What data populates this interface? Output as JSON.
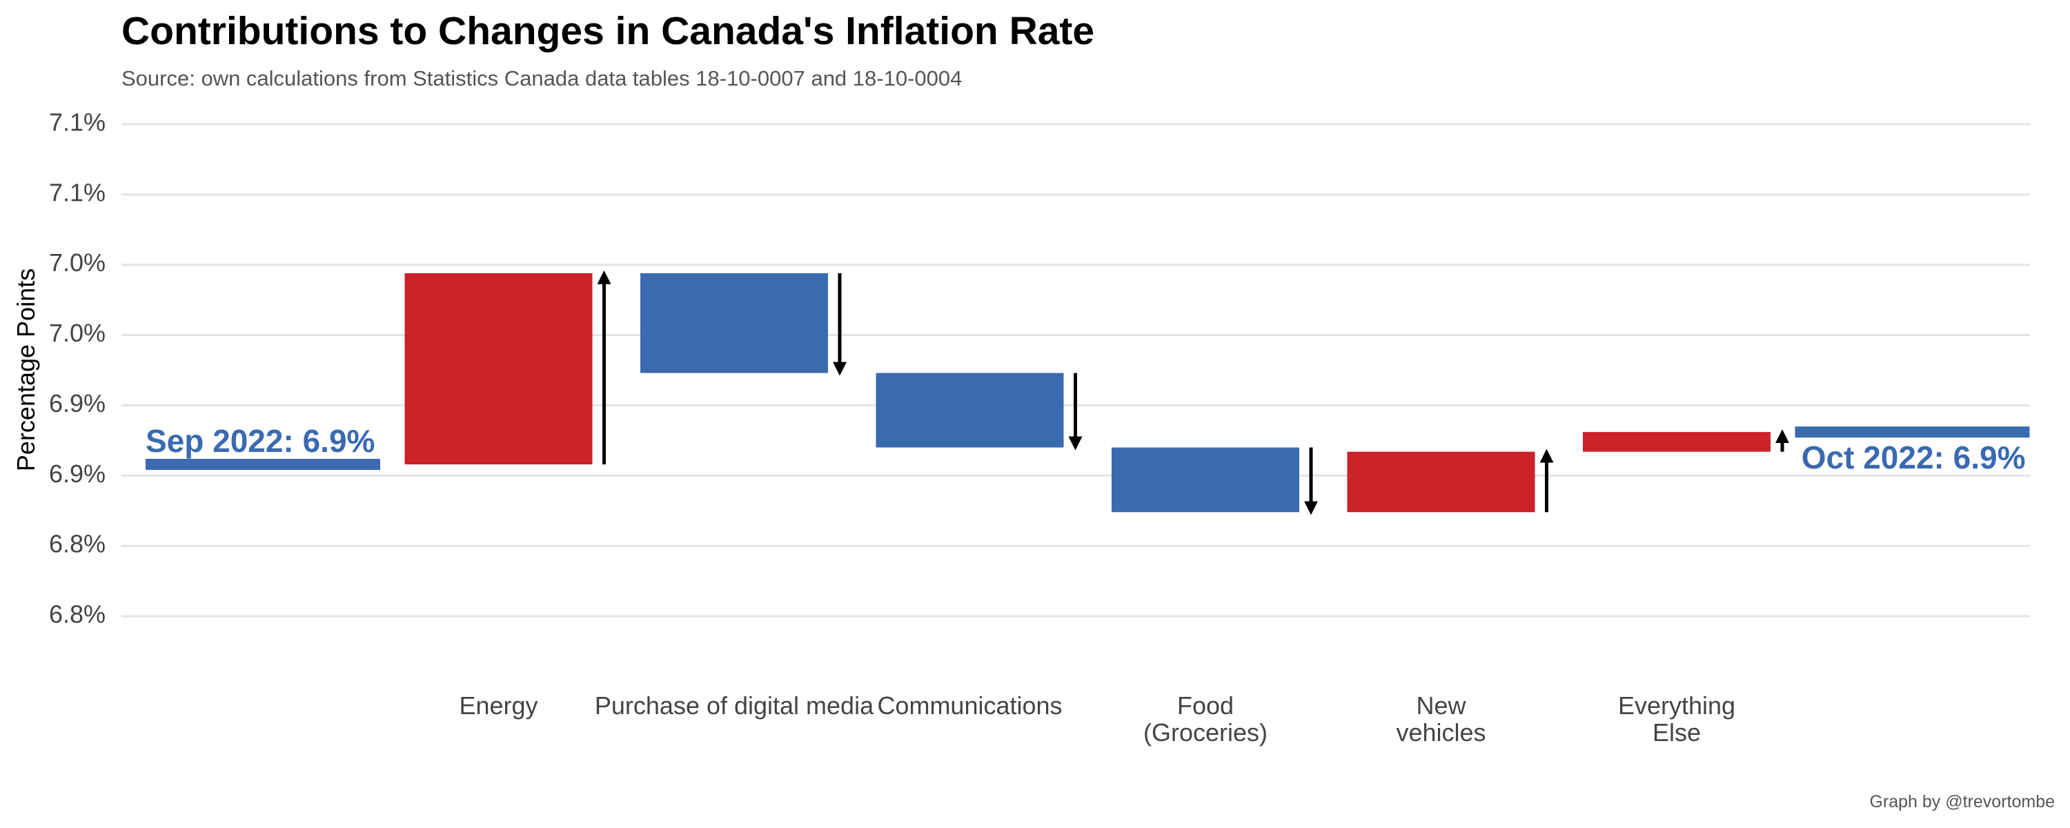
{
  "chart_data": {
    "type": "waterfall",
    "title": "Contributions to Changes in Canada's Inflation Rate",
    "subtitle": "Source: own calculations from Statistics Canada data tables 18-10-0007 and 18-10-0004",
    "y_label": "Percentage Points",
    "caption": "Graph by @trevortombe",
    "start": {
      "label": "Sep 2022: 6.9%",
      "value": 6.858
    },
    "end": {
      "label": "Oct 2022: 6.9%",
      "value": 6.881
    },
    "categories": [
      [
        "Energy"
      ],
      [
        "Purchase of digital media"
      ],
      [
        "Communications"
      ],
      [
        "Food",
        "(Groceries)"
      ],
      [
        "New",
        "vehicles"
      ],
      [
        "Everything",
        "Else"
      ]
    ],
    "values": [
      0.136,
      -0.071,
      -0.053,
      -0.046,
      0.043,
      0.014
    ],
    "increase_color": "#cc2229",
    "decrease_color": "#3a6ab0",
    "total_color": "#3a6ab0",
    "ylim": [
      6.75,
      7.1
    ],
    "yticks": [
      {
        "value": 6.75,
        "label": "6.8%"
      },
      {
        "value": 6.8,
        "label": "6.8%"
      },
      {
        "value": 6.85,
        "label": "6.9%"
      },
      {
        "value": 6.9,
        "label": "6.9%"
      },
      {
        "value": 6.95,
        "label": "7.0%"
      },
      {
        "value": 7.0,
        "label": "7.0%"
      },
      {
        "value": 7.05,
        "label": "7.1%"
      },
      {
        "value": 7.1,
        "label": "7.1%"
      }
    ],
    "grid": true
  }
}
